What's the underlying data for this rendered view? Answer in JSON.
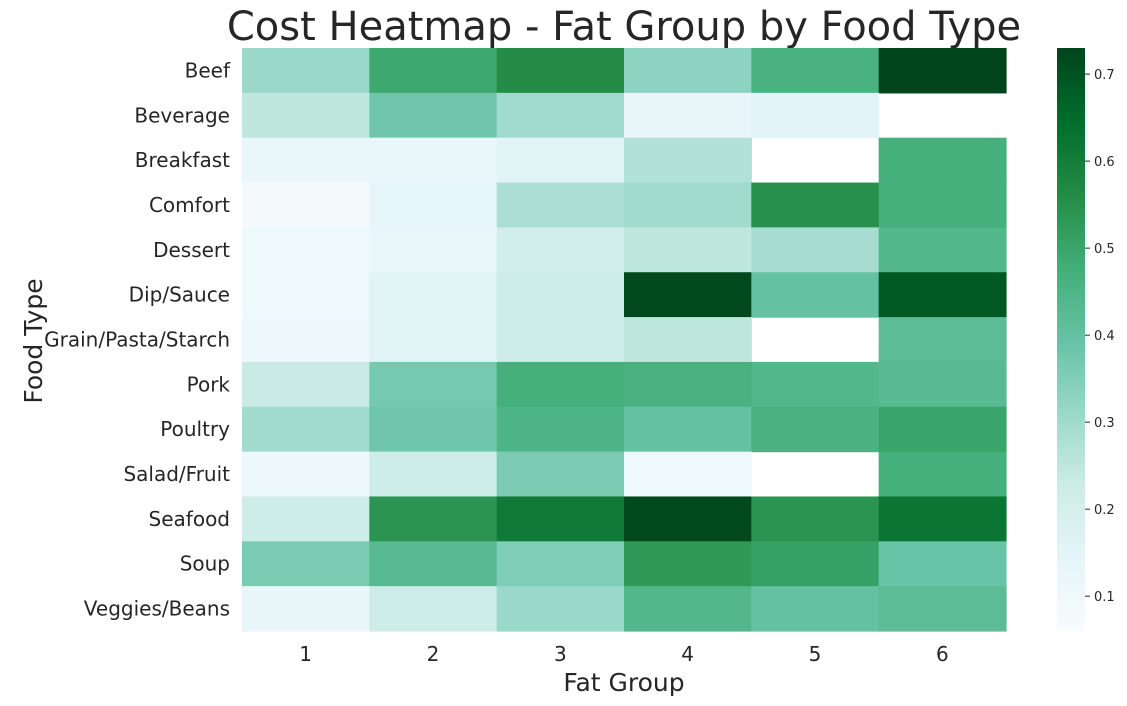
{
  "chart_data": {
    "type": "heatmap",
    "title": "Cost Heatmap - Fat Group by Food Type",
    "xlabel": "Fat Group",
    "ylabel": "Food Type",
    "x_categories": [
      "1",
      "2",
      "3",
      "4",
      "5",
      "6"
    ],
    "y_categories": [
      "Beef",
      "Beverage",
      "Breakfast",
      "Comfort",
      "Dessert",
      "Dip/Sauce",
      "Grain/Pasta/Starch",
      "Pork",
      "Poultry",
      "Salad/Fruit",
      "Seafood",
      "Soup",
      "Veggies/Beans"
    ],
    "values": [
      [
        0.31,
        0.49,
        0.56,
        0.33,
        0.46,
        0.73
      ],
      [
        0.25,
        0.38,
        0.3,
        0.13,
        0.15,
        null
      ],
      [
        0.12,
        0.12,
        0.16,
        0.27,
        null,
        0.47
      ],
      [
        0.07,
        0.14,
        0.28,
        0.3,
        0.55,
        0.47
      ],
      [
        0.1,
        0.12,
        0.21,
        0.25,
        0.29,
        0.44
      ],
      [
        0.1,
        0.16,
        0.22,
        0.72,
        0.4,
        0.69
      ],
      [
        0.11,
        0.16,
        0.22,
        0.25,
        null,
        0.42
      ],
      [
        0.23,
        0.37,
        0.47,
        0.46,
        0.44,
        0.43
      ],
      [
        0.3,
        0.38,
        0.45,
        0.4,
        0.46,
        0.5
      ],
      [
        0.11,
        0.22,
        0.36,
        0.1,
        null,
        0.47
      ],
      [
        0.22,
        0.54,
        0.61,
        0.72,
        0.54,
        0.62
      ],
      [
        0.36,
        0.43,
        0.35,
        0.53,
        0.51,
        0.39
      ],
      [
        0.13,
        0.22,
        0.31,
        0.44,
        0.4,
        0.42
      ]
    ],
    "vmin": 0.06,
    "vmax": 0.73,
    "colorbar_ticks": [
      0.1,
      0.2,
      0.3,
      0.4,
      0.5,
      0.6,
      0.7
    ],
    "colormap": [
      "#f7fcfd",
      "#e5f5f9",
      "#ccece6",
      "#99d8c9",
      "#66c2a4",
      "#41ae76",
      "#238b45",
      "#006d2c",
      "#00441b"
    ]
  }
}
